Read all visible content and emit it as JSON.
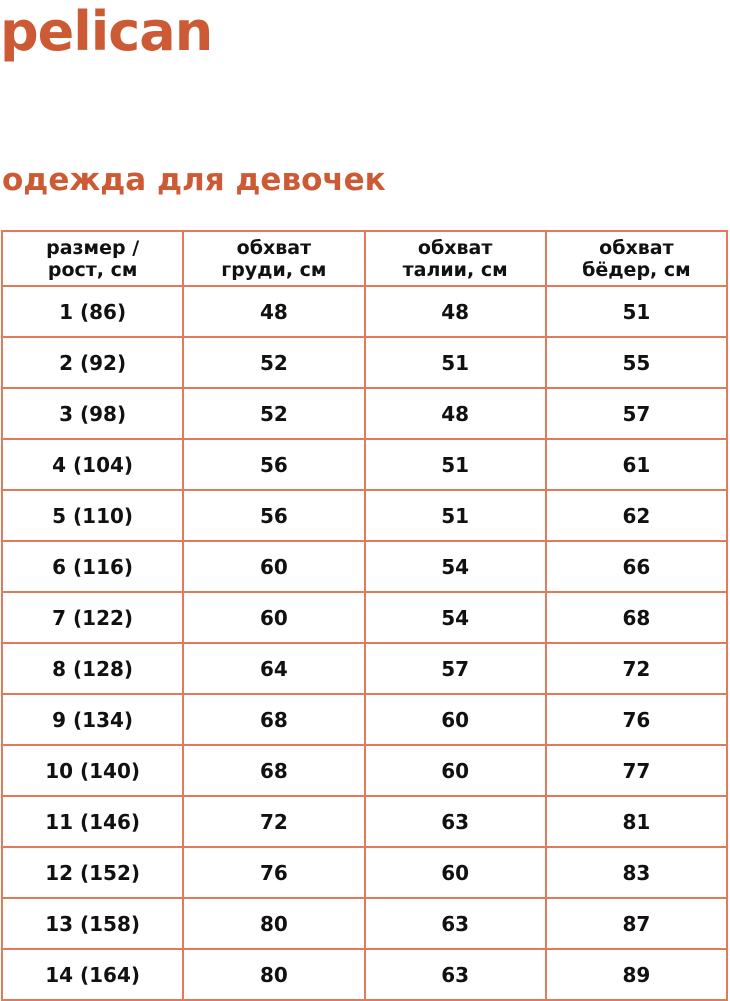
{
  "brand": {
    "logo": "pelican",
    "color": "#cc5a35"
  },
  "title": "одежда для девочек",
  "table": {
    "border_color": "#e07a5a",
    "headers": [
      [
        "размер /",
        "рост, см"
      ],
      [
        "обхват",
        "груди, см"
      ],
      [
        "обхват",
        "талии, см"
      ],
      [
        "обхват",
        "бёдер, см"
      ]
    ],
    "rows": [
      [
        "1 (86)",
        "48",
        "48",
        "51"
      ],
      [
        "2 (92)",
        "52",
        "51",
        "55"
      ],
      [
        "3 (98)",
        "52",
        "48",
        "57"
      ],
      [
        "4 (104)",
        "56",
        "51",
        "61"
      ],
      [
        "5 (110)",
        "56",
        "51",
        "62"
      ],
      [
        "6 (116)",
        "60",
        "54",
        "66"
      ],
      [
        "7 (122)",
        "60",
        "54",
        "68"
      ],
      [
        "8 (128)",
        "64",
        "57",
        "72"
      ],
      [
        "9 (134)",
        "68",
        "60",
        "76"
      ],
      [
        "10 (140)",
        "68",
        "60",
        "77"
      ],
      [
        "11 (146)",
        "72",
        "63",
        "81"
      ],
      [
        "12 (152)",
        "76",
        "60",
        "83"
      ],
      [
        "13 (158)",
        "80",
        "63",
        "87"
      ],
      [
        "14 (164)",
        "80",
        "63",
        "89"
      ]
    ]
  }
}
